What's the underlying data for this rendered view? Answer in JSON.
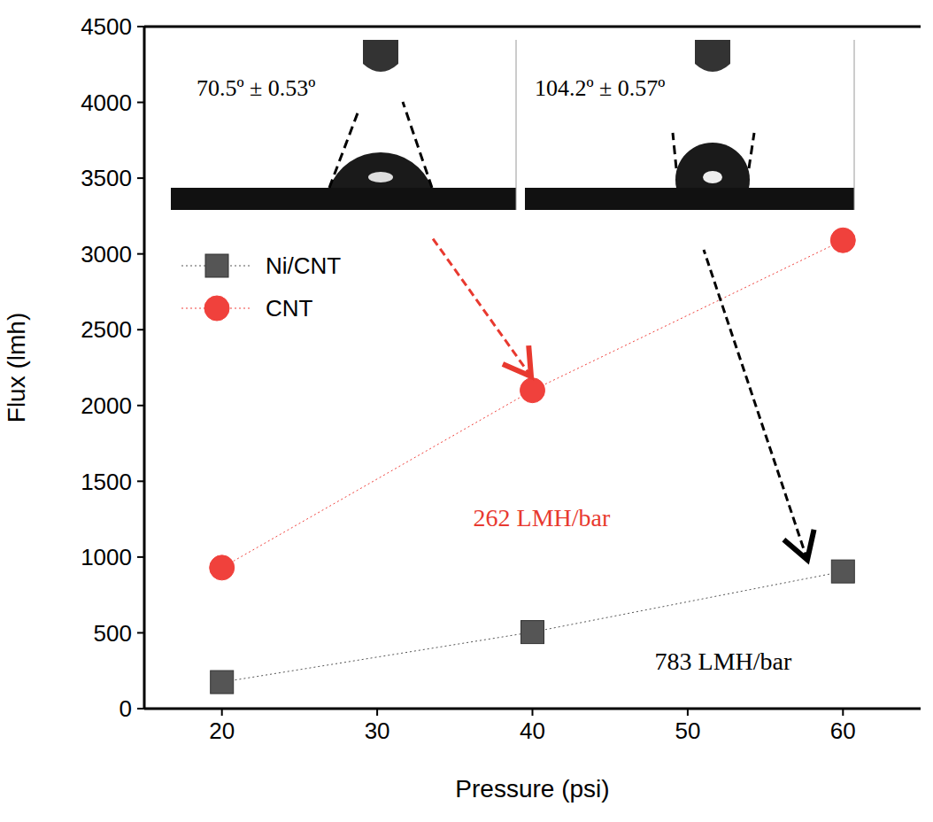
{
  "chart_data": {
    "type": "line",
    "x_label": "Pressure (psi)",
    "y_label": "Flux (lmh)",
    "x": [
      20,
      40,
      60
    ],
    "series": [
      {
        "name": "Ni/CNT",
        "color": "#555555",
        "marker": "square",
        "line_style": "dotted",
        "values": [
          175,
          505,
          905
        ]
      },
      {
        "name": "CNT",
        "color": "#f0413c",
        "marker": "circle",
        "line_style": "dotted",
        "values": [
          930,
          2100,
          3090
        ]
      }
    ],
    "xlim": [
      15,
      65
    ],
    "xticks": [
      20,
      30,
      40,
      50,
      60
    ],
    "ylim": [
      0,
      4500
    ],
    "yticks": [
      0,
      500,
      1000,
      1500,
      2000,
      2500,
      3000,
      3500,
      4000,
      4500
    ],
    "legend": "upper left",
    "annotations": [
      {
        "text": "262 LMH/bar",
        "color": "#e8392f"
      },
      {
        "text": "783 LMH/bar",
        "color": "#000000"
      },
      {
        "text": "70.5º ± 0.53º"
      },
      {
        "text": "104.2º ± 0.57º"
      }
    ]
  }
}
